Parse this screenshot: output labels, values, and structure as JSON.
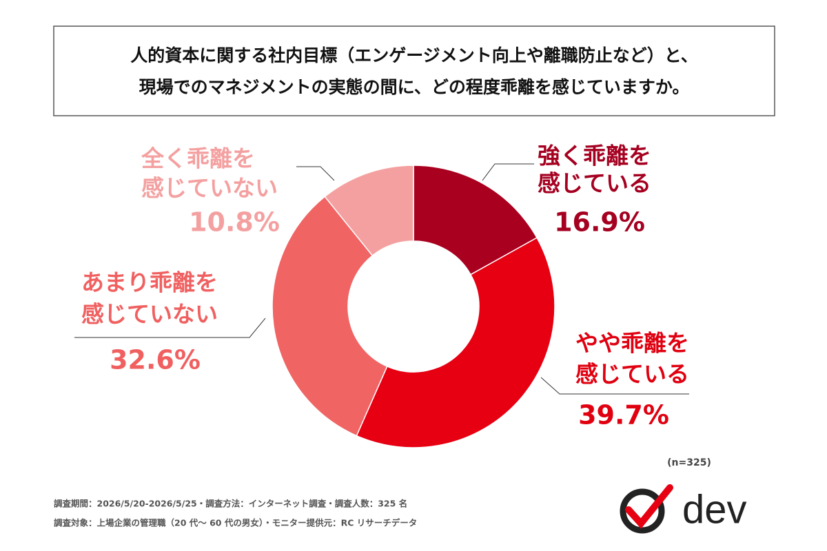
{
  "chart_data": {
    "type": "donut",
    "title": [
      "人的資本に関する社内目標（エンゲージメント向上や離職防止など）と、",
      "現場でのマネジメントの実態の間に、どの程度乖離を感じていますか。"
    ],
    "categories": [
      [
        "強く乖離を",
        "感じている"
      ],
      [
        "やや乖離を",
        "感じている"
      ],
      [
        "あまり乖離を",
        "感じていない"
      ],
      [
        "全く乖離を",
        "感じていない"
      ]
    ],
    "values": [
      16.9,
      39.7,
      32.6,
      10.8
    ],
    "value_labels": [
      "16.9%",
      "39.7%",
      "32.6%",
      "10.8%"
    ],
    "colors": [
      "#aa0020",
      "#e60012",
      "#f06464",
      "#f5a0a0"
    ],
    "label_colors": [
      "#a50020",
      "#e00010",
      "#f06060",
      "#f4a0a0"
    ],
    "note": "(n=325)",
    "footnotes": [
      "調査期間：2026/5/20-2026/5/25・調査方法：インターネット調査・調査人数：325 名",
      "調査対象：上場企業の管理職（20 代〜 60 代の男女）・モニター提供元：RC リサーチデータ"
    ],
    "logo": "dev"
  }
}
